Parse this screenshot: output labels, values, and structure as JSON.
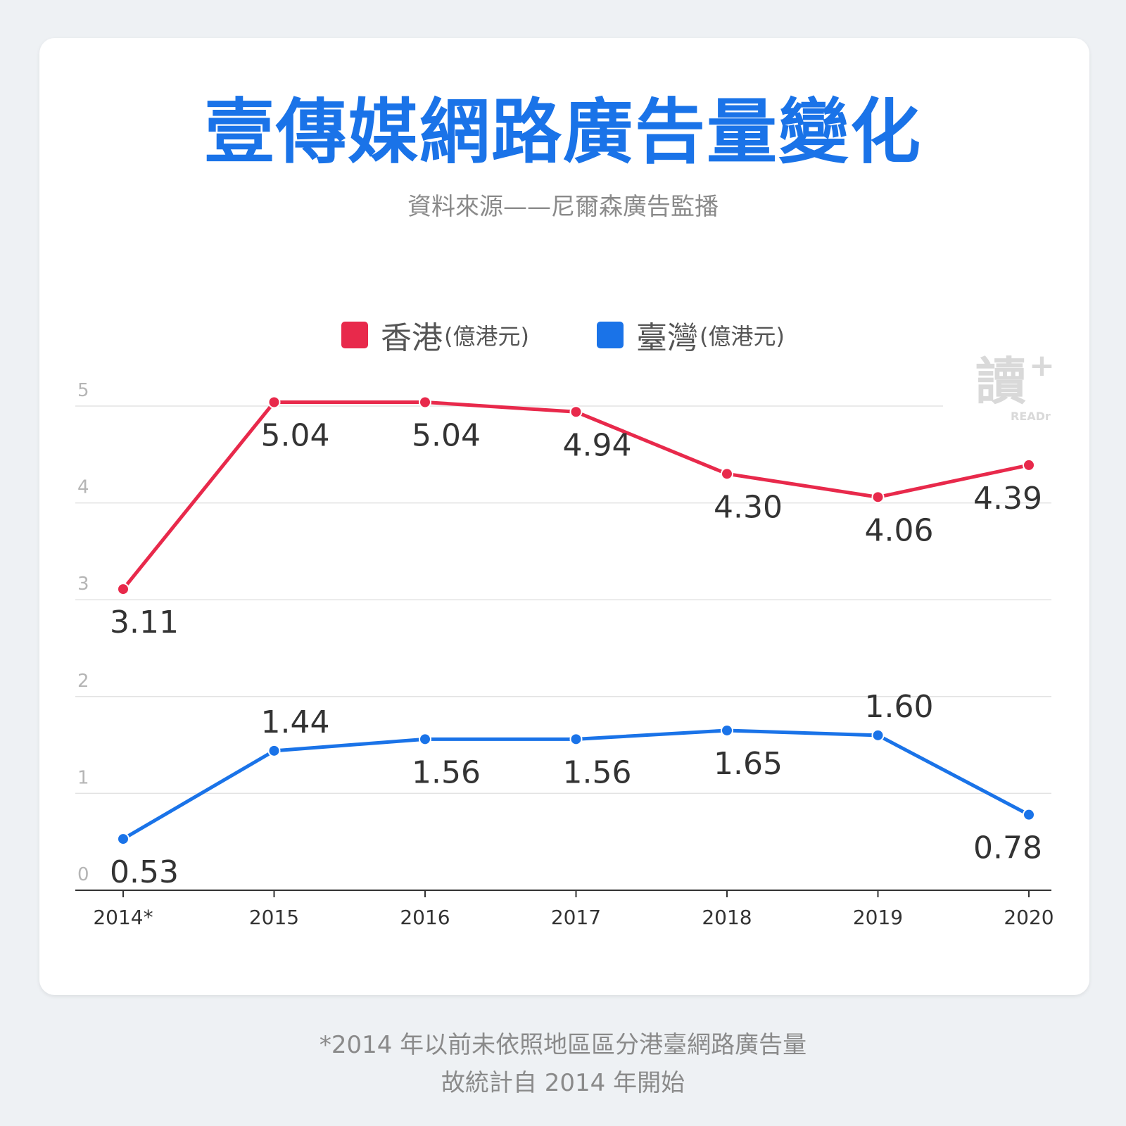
{
  "header": {
    "title": "壹傳媒網路廣告量變化",
    "subtitle": "資料來源——尼爾森廣告監播"
  },
  "logo": {
    "glyph": "讀",
    "plus": "+",
    "text": "READr"
  },
  "footnote": {
    "line1": "*2014 年以前未依照地區區分港臺網路廣告量",
    "line2": "故統計自 2014 年開始"
  },
  "colors": {
    "hongkong": "#e8294b",
    "taiwan": "#1a73e8"
  },
  "chart_data": {
    "type": "line",
    "title": "壹傳媒網路廣告量變化",
    "x": [
      "2014*",
      "2015",
      "2016",
      "2017",
      "2018",
      "2019",
      "2020"
    ],
    "ylim": [
      0,
      5
    ],
    "yticks": [
      0,
      1,
      2,
      3,
      4,
      5
    ],
    "grid": true,
    "legend": "top-center",
    "series": [
      {
        "name": "香港",
        "unit": "(億港元)",
        "color": "#e8294b",
        "values": [
          3.11,
          5.04,
          5.04,
          4.94,
          4.3,
          4.06,
          4.39
        ],
        "labels": [
          "3.11",
          "5.04",
          "5.04",
          "4.94",
          "4.30",
          "4.06",
          "4.39"
        ]
      },
      {
        "name": "臺灣",
        "unit": "(億港元)",
        "color": "#1a73e8",
        "values": [
          0.53,
          1.44,
          1.56,
          1.56,
          1.65,
          1.6,
          0.78
        ],
        "labels": [
          "0.53",
          "1.44",
          "1.56",
          "1.56",
          "1.65",
          "1.60",
          "0.78"
        ]
      }
    ]
  }
}
